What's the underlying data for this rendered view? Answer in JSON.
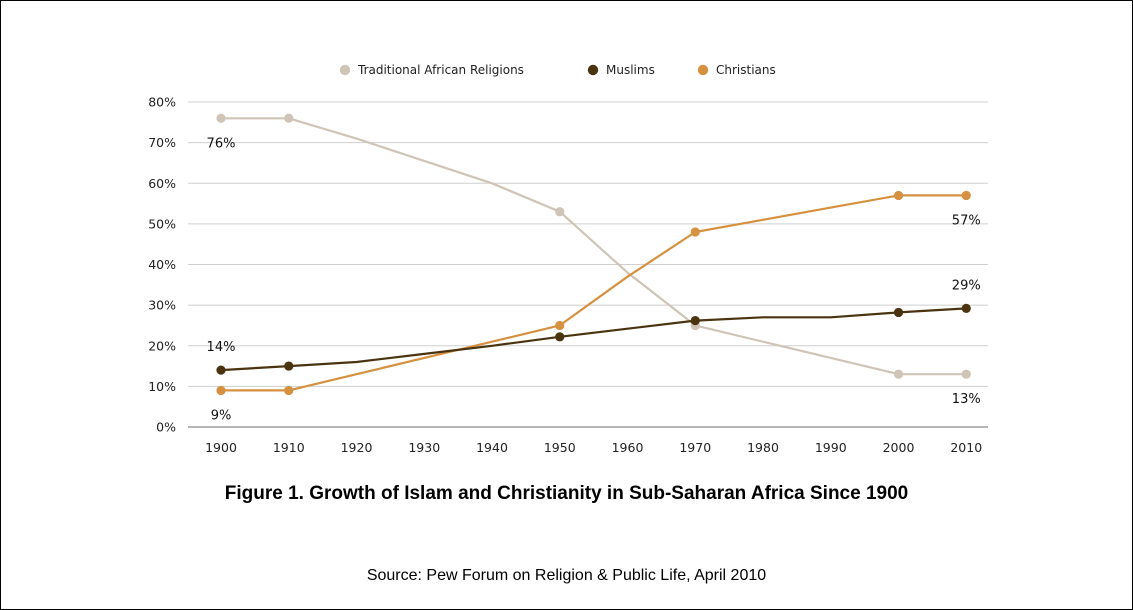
{
  "chart_data": {
    "type": "line",
    "x": [
      1900,
      1910,
      1920,
      1930,
      1940,
      1950,
      1960,
      1970,
      1980,
      1990,
      2000,
      2010
    ],
    "yticks": [
      "0%",
      "10%",
      "20%",
      "30%",
      "40%",
      "50%",
      "60%",
      "70%",
      "80%"
    ],
    "ylim": [
      0,
      80
    ],
    "grid": true,
    "legend_position": "top-center",
    "series": [
      {
        "name": "Traditional African Religions",
        "color": "#cfc4b6",
        "values": [
          76,
          76,
          71,
          65.5,
          60,
          53,
          38,
          25,
          21,
          17,
          13,
          13
        ],
        "markers": [
          1900,
          1910,
          1950,
          1970,
          2000,
          2010
        ]
      },
      {
        "name": "Muslims",
        "color": "#4a3410",
        "values": [
          14,
          15,
          16,
          18,
          20,
          22.2,
          24.2,
          26.2,
          27,
          27,
          28.2,
          29.2
        ],
        "markers": [
          1900,
          1910,
          1950,
          1970,
          2000,
          2010
        ]
      },
      {
        "name": "Christians",
        "color": "#d5913f",
        "values": [
          9,
          9,
          13,
          17,
          21,
          25,
          37,
          48,
          51,
          54,
          57,
          57
        ],
        "markers": [
          1900,
          1910,
          1950,
          1970,
          2000,
          2010
        ]
      }
    ],
    "annotations": [
      {
        "text": "76%",
        "series": 0,
        "x": 1900,
        "placement": "below"
      },
      {
        "text": "14%",
        "series": 1,
        "x": 1900,
        "placement": "above"
      },
      {
        "text": "9%",
        "series": 2,
        "x": 1900,
        "placement": "below"
      },
      {
        "text": "57%",
        "series": 2,
        "x": 2010,
        "placement": "below"
      },
      {
        "text": "29%",
        "series": 1,
        "x": 2010,
        "placement": "above"
      },
      {
        "text": "13%",
        "series": 0,
        "x": 2010,
        "placement": "below"
      }
    ]
  },
  "caption": "Figure 1. Growth of Islam and Christianity in Sub-Saharan Africa Since 1900",
  "source": "Source: Pew Forum on Religion & Public Life, April 2010"
}
